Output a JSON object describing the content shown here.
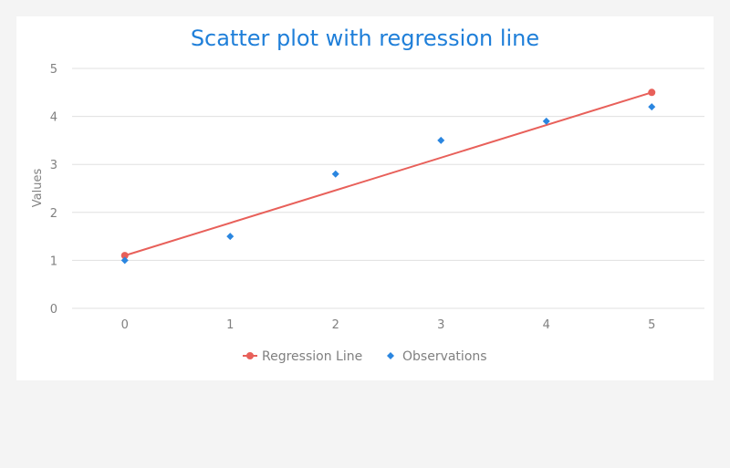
{
  "chart_data": {
    "type": "scatter",
    "title": "Scatter plot with regression line",
    "xlabel": "",
    "ylabel": "Values",
    "xlim": [
      -0.5,
      5.5
    ],
    "ylim": [
      0,
      5
    ],
    "x_ticks": [
      "0",
      "1",
      "2",
      "3",
      "4",
      "5"
    ],
    "y_ticks": [
      "0",
      "1",
      "2",
      "3",
      "4",
      "5"
    ],
    "grid": "horizontal",
    "legend_position": "bottom",
    "series": [
      {
        "name": "Regression Line",
        "type": "line",
        "color": "#e8605a",
        "points": [
          [
            0,
            1.1
          ],
          [
            5,
            4.5
          ]
        ]
      },
      {
        "name": "Observations",
        "type": "scatter",
        "marker": "diamond",
        "color": "#2a86e0",
        "points": [
          [
            0,
            1.0
          ],
          [
            1,
            1.5
          ],
          [
            2,
            2.8
          ],
          [
            3,
            3.5
          ],
          [
            4,
            3.9
          ],
          [
            5,
            4.2
          ]
        ]
      }
    ]
  }
}
